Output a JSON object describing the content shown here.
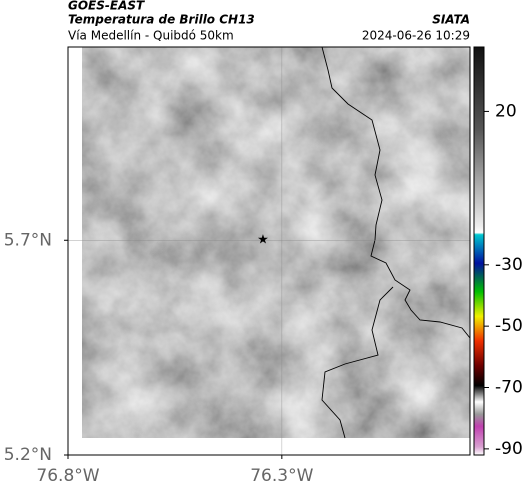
{
  "header": {
    "satellite": "GOES-EAST",
    "product": "Temperatura de Brillo CH13",
    "route": "Vía Medellín - Quibdó 50km",
    "agency": "SIATA",
    "datetime": "2024-06-26 10:29"
  },
  "map": {
    "xlim": [
      -76.8,
      -75.86
    ],
    "ylim": [
      5.2,
      6.15
    ],
    "xticks": [
      {
        "value": -76.8,
        "label": "76.8°W"
      },
      {
        "value": -76.3,
        "label": "76.3°W"
      }
    ],
    "yticks": [
      {
        "value": 5.2,
        "label": "5.2°N"
      },
      {
        "value": 5.7,
        "label": "5.7°N"
      }
    ],
    "grid": true
  },
  "colorbar": {
    "lim": [
      -92,
      41
    ],
    "ticks": [
      20,
      -30,
      -50,
      -70,
      -90
    ]
  }
}
